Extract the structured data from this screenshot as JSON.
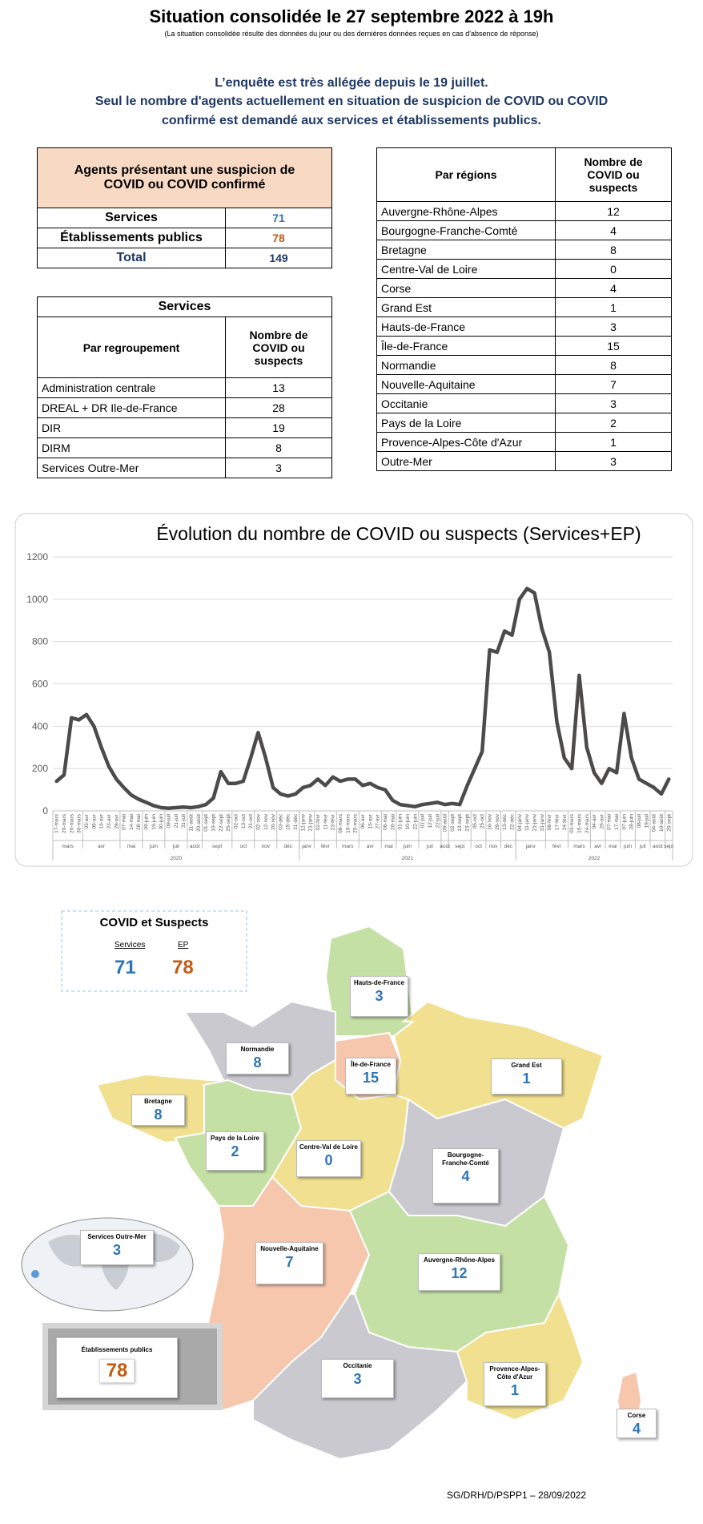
{
  "header": {
    "title": "Situation consolidée le 27 septembre 2022 à 19h",
    "subtitle": "(La situation consolidée résulte des données du jour ou des dernières données reçues en cas d'absence de réponse)"
  },
  "intro": [
    "L’enquête est très allégée depuis le 19 juillet.",
    "Seul le nombre d'agents actuellement en situation de suspicion de COVID ou COVID",
    "confirmé est demandé aux services et établissements publics."
  ],
  "summary_table": {
    "title": "Agents présentant une suspicion de COVID ou COVID confirmé",
    "rows": [
      [
        "Services",
        71
      ],
      [
        "Établissements publics",
        78
      ],
      [
        "Total",
        149
      ]
    ]
  },
  "services_table": {
    "title": "Services",
    "header": [
      "Par regroupement",
      "Nombre de COVID ou suspects"
    ],
    "rows": [
      [
        "Administration centrale",
        13
      ],
      [
        "DREAL + DR Ile-de-France",
        28
      ],
      [
        "DIR",
        19
      ],
      [
        "DIRM",
        8
      ],
      [
        "Services Outre-Mer",
        3
      ]
    ]
  },
  "regions_table": {
    "header": [
      "Par régions",
      "Nombre de COVID ou suspects"
    ],
    "rows": [
      [
        "Auvergne-Rhône-Alpes",
        12
      ],
      [
        "Bourgogne-Franche-Comté",
        4
      ],
      [
        "Bretagne",
        8
      ],
      [
        "Centre-Val de Loire",
        0
      ],
      [
        "Corse",
        4
      ],
      [
        "Grand Est",
        1
      ],
      [
        "Hauts-de-France",
        3
      ],
      [
        "Île-de-France",
        15
      ],
      [
        "Normandie",
        8
      ],
      [
        "Nouvelle-Aquitaine",
        7
      ],
      [
        "Occitanie",
        3
      ],
      [
        "Pays de la Loire",
        2
      ],
      [
        "Provence-Alpes-Côte d'Azur",
        1
      ],
      [
        "Outre-Mer",
        3
      ]
    ]
  },
  "chart_data": {
    "type": "line",
    "title": "Évolution du nombre de COVID ou suspects (Services+EP)",
    "categories": [
      "17-mars",
      "20-mars",
      "26-mars",
      "30-mars",
      "03-avr",
      "09-avr",
      "16-avr",
      "23-avr",
      "28-avr",
      "07-mai",
      "14-mai",
      "28-mai",
      "09-juin",
      "19-juin",
      "30-juin",
      "09-juil",
      "21-juil",
      "31-juil",
      "11-août",
      "20-août",
      "01-sept",
      "10-sept",
      "22-sept",
      "25-sept",
      "02-oct",
      "13-oct",
      "21-oct",
      "02-nov",
      "12-nov",
      "20-nov",
      "03-déc",
      "15-déc",
      "31-déc",
      "12-janv",
      "21-janv",
      "02-févr",
      "11-févr",
      "23-févr",
      "08-mars",
      "16-mars",
      "25-mars",
      "06-avr",
      "15-avr",
      "27-avr",
      "06-mai",
      "20-mai",
      "01-juin",
      "10-juin",
      "22-juin",
      "01-juil",
      "12-juil",
      "22-juil",
      "09-août",
      "02-sept",
      "13-sept",
      "23-sept",
      "05-oct",
      "25-oct",
      "16-nov",
      "29-nov",
      "13-déc",
      "22-déc",
      "04-janv",
      "11-janv",
      "21-janv",
      "31-janv",
      "08-févr",
      "17-févr",
      "24-févr",
      "03-mars",
      "15-mars",
      "24-mars",
      "04-avr",
      "26-avr",
      "07-mai",
      "17-mai",
      "07-juin",
      "28-juin",
      "08-juil",
      "19-juil",
      "04-août",
      "10-août",
      "20-sept"
    ],
    "series": [
      {
        "name": "COVID ou suspects",
        "color": "#4d4a4a",
        "values": [
          140,
          170,
          440,
          430,
          455,
          400,
          300,
          210,
          150,
          110,
          75,
          55,
          40,
          25,
          15,
          12,
          15,
          18,
          15,
          20,
          30,
          60,
          185,
          130,
          130,
          140,
          250,
          370,
          250,
          110,
          80,
          70,
          80,
          110,
          120,
          150,
          120,
          160,
          140,
          150,
          150,
          120,
          130,
          110,
          100,
          50,
          30,
          25,
          20,
          30,
          35,
          40,
          30,
          35,
          30,
          120,
          200,
          280,
          760,
          750,
          850,
          830,
          1000,
          1050,
          1030,
          860,
          750,
          420,
          250,
          200,
          640,
          300,
          180,
          130,
          200,
          180,
          460,
          250,
          150,
          130,
          110,
          80,
          150
        ]
      }
    ],
    "years": [
      {
        "label": "2020",
        "months": [
          "mars",
          "avr",
          "mai",
          "juin",
          "juil",
          "août",
          "sept",
          "oct",
          "nov",
          "déc"
        ]
      },
      {
        "label": "2021",
        "months": [
          "janv",
          "févr",
          "mars",
          "avr",
          "mai",
          "juin",
          "juil",
          "août",
          "sept",
          "oct",
          "nov",
          "déc"
        ]
      },
      {
        "label": "2022",
        "months": [
          "janv",
          "févr",
          "mars",
          "avr",
          "mai",
          "juin",
          "juil",
          "août",
          "sept"
        ]
      }
    ],
    "ylim": [
      0,
      1200
    ],
    "yticks": [
      0,
      200,
      400,
      600,
      800,
      1000,
      1200
    ],
    "grid": true
  },
  "map": {
    "title": "COVID et Suspects",
    "ep_label": "EP"
  },
  "footer": "SG/DRH/D/PSPP1 – 28/09/2022"
}
